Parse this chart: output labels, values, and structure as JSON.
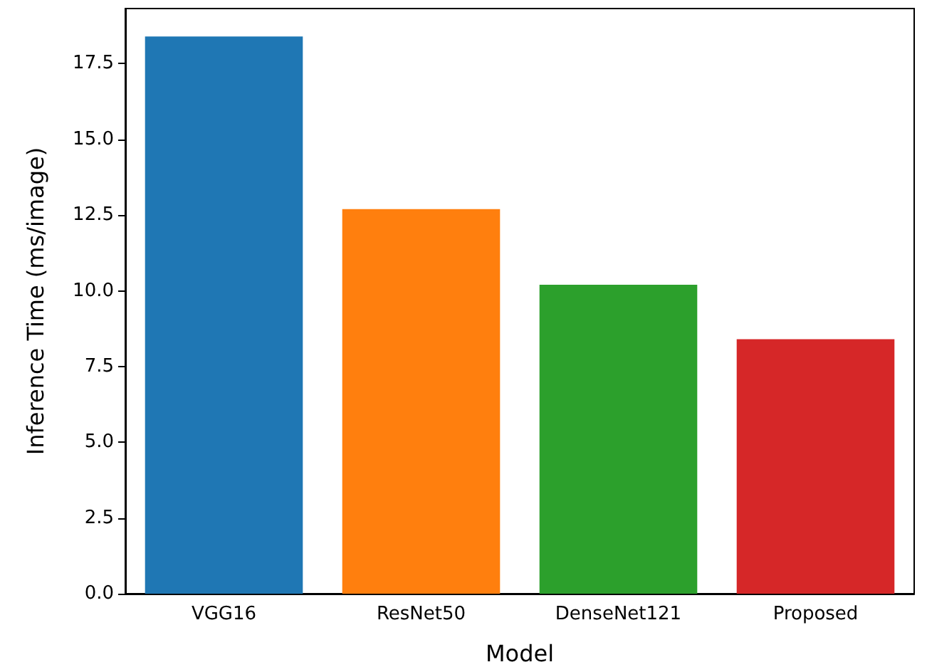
{
  "chart_data": {
    "type": "bar",
    "xlabel": "Model",
    "ylabel": "Inference Time (ms/image)",
    "categories": [
      "VGG16",
      "ResNet50",
      "DenseNet121",
      "Proposed"
    ],
    "values": [
      18.4,
      12.7,
      10.2,
      8.4
    ],
    "colors": [
      "#1f77b4",
      "#ff7f0e",
      "#2ca02c",
      "#d62728"
    ],
    "ylim": [
      0,
      19.32
    ],
    "yticks": [
      {
        "value": 0,
        "label": "0.0"
      },
      {
        "value": 2.5,
        "label": "2.5"
      },
      {
        "value": 5,
        "label": "5.0"
      },
      {
        "value": 7.5,
        "label": "7.5"
      },
      {
        "value": 10,
        "label": "10.0"
      },
      {
        "value": 12.5,
        "label": "12.5"
      },
      {
        "value": 15,
        "label": "15.0"
      },
      {
        "value": 17.5,
        "label": "17.5"
      }
    ],
    "grid": false
  }
}
